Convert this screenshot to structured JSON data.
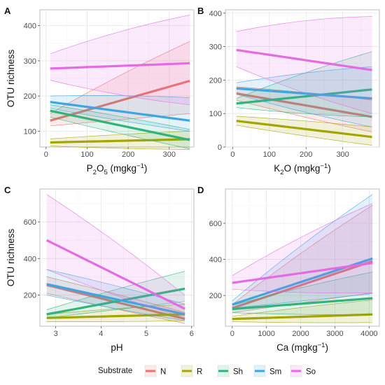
{
  "legend": {
    "title": "Substrate",
    "items": [
      {
        "key": "N",
        "label": "N",
        "color": "#E8746B"
      },
      {
        "key": "R",
        "label": "R",
        "color": "#A3A500"
      },
      {
        "key": "Sh",
        "label": "Sh",
        "color": "#2FB47C"
      },
      {
        "key": "Sm",
        "label": "Sm",
        "color": "#3CA6E0"
      },
      {
        "key": "So",
        "label": "So",
        "color": "#E36BE3"
      }
    ]
  },
  "chart_data": [
    {
      "panel": "A",
      "type": "line",
      "xlabel_main": "P",
      "xlabel_sub": "2",
      "xlabel_mid": "O",
      "xlabel_sub2": "5",
      "xlabel_unit": " (mgkg",
      "xlabel_sup": "−1",
      "xlabel_end": ")",
      "ylabel": "OTU richness",
      "xlim": [
        -15,
        360
      ],
      "ylim": [
        55,
        445
      ],
      "xticks": [
        0,
        100,
        200,
        300
      ],
      "yticks": [
        100,
        200,
        300,
        400
      ],
      "series": [
        {
          "name": "N",
          "x": [
            10,
            350
          ],
          "fit": [
            130,
            243
          ],
          "lower": [
            115,
            150
          ],
          "upper": [
            150,
            355
          ]
        },
        {
          "name": "R",
          "x": [
            10,
            350
          ],
          "fit": [
            68,
            77
          ],
          "lower": [
            58,
            48
          ],
          "upper": [
            78,
            100
          ]
        },
        {
          "name": "Sh",
          "x": [
            10,
            350
          ],
          "fit": [
            158,
            75
          ],
          "lower": [
            140,
            50
          ],
          "upper": [
            175,
            105
          ]
        },
        {
          "name": "Sm",
          "x": [
            10,
            350
          ],
          "fit": [
            183,
            130
          ],
          "lower": [
            165,
            100
          ],
          "upper": [
            200,
            195
          ]
        },
        {
          "name": "So",
          "x": [
            10,
            350
          ],
          "fit": [
            278,
            293
          ],
          "lower": [
            245,
            175
          ],
          "upper": [
            320,
            430
          ]
        }
      ]
    },
    {
      "panel": "B",
      "type": "line",
      "xlabel_main": "K",
      "xlabel_sub": "2",
      "xlabel_mid": "O",
      "xlabel_sub2": "",
      "xlabel_unit": " (mgkg",
      "xlabel_sup": "−1",
      "xlabel_end": ")",
      "ylabel": "",
      "xlim": [
        -20,
        400
      ],
      "ylim": [
        0,
        410
      ],
      "xticks": [
        0,
        100,
        200,
        300
      ],
      "yticks": [
        0,
        100,
        200,
        300,
        400
      ],
      "series": [
        {
          "name": "N",
          "x": [
            10,
            380
          ],
          "fit": [
            160,
            90
          ],
          "lower": [
            140,
            45
          ],
          "upper": [
            180,
            140
          ]
        },
        {
          "name": "R",
          "x": [
            10,
            380
          ],
          "fit": [
            78,
            30
          ],
          "lower": [
            65,
            5
          ],
          "upper": [
            92,
            60
          ]
        },
        {
          "name": "Sh",
          "x": [
            10,
            380
          ],
          "fit": [
            130,
            172
          ],
          "lower": [
            118,
            90
          ],
          "upper": [
            145,
            285
          ]
        },
        {
          "name": "Sm",
          "x": [
            10,
            380
          ],
          "fit": [
            175,
            145
          ],
          "lower": [
            158,
            60
          ],
          "upper": [
            192,
            240
          ]
        },
        {
          "name": "So",
          "x": [
            10,
            380
          ],
          "fit": [
            290,
            230
          ],
          "lower": [
            240,
            100
          ],
          "upper": [
            345,
            390
          ]
        }
      ]
    },
    {
      "panel": "C",
      "type": "line",
      "xlabel_main": "pH",
      "xlabel_sub": "",
      "xlabel_mid": "",
      "xlabel_sub2": "",
      "xlabel_unit": "",
      "xlabel_sup": "",
      "xlabel_end": "",
      "ylabel": "OTU richness",
      "xlim": [
        2.65,
        6.05
      ],
      "ylim": [
        30,
        780
      ],
      "xticks": [
        3,
        4,
        5,
        6
      ],
      "yticks": [
        200,
        400,
        600
      ],
      "series": [
        {
          "name": "N",
          "x": [
            2.8,
            5.85
          ],
          "fit": [
            255,
            70
          ],
          "lower": [
            210,
            45
          ],
          "upper": [
            300,
            105
          ]
        },
        {
          "name": "R",
          "x": [
            2.8,
            5.85
          ],
          "fit": [
            75,
            95
          ],
          "lower": [
            55,
            60
          ],
          "upper": [
            95,
            150
          ]
        },
        {
          "name": "Sh",
          "x": [
            2.8,
            5.85
          ],
          "fit": [
            95,
            235
          ],
          "lower": [
            75,
            165
          ],
          "upper": [
            120,
            330
          ]
        },
        {
          "name": "Sm",
          "x": [
            2.8,
            5.85
          ],
          "fit": [
            260,
            95
          ],
          "lower": [
            200,
            60
          ],
          "upper": [
            340,
            150
          ]
        },
        {
          "name": "So",
          "x": [
            2.8,
            5.85
          ],
          "fit": [
            500,
            125
          ],
          "lower": [
            340,
            75
          ],
          "upper": [
            750,
            200
          ]
        }
      ]
    },
    {
      "panel": "D",
      "type": "line",
      "xlabel_main": "Ca",
      "xlabel_sub": "",
      "xlabel_mid": "",
      "xlabel_sub2": "",
      "xlabel_unit": " (mgkg",
      "xlabel_sup": "−1",
      "xlabel_end": ")",
      "ylabel": "",
      "xlim": [
        -200,
        4300
      ],
      "ylim": [
        30,
        790
      ],
      "xticks": [
        0,
        1000,
        2000,
        3000,
        4000
      ],
      "yticks": [
        200,
        400,
        600
      ],
      "series": [
        {
          "name": "N",
          "x": [
            0,
            4100
          ],
          "fit": [
            130,
            390
          ],
          "lower": [
            105,
            215
          ],
          "upper": [
            150,
            700
          ]
        },
        {
          "name": "R",
          "x": [
            0,
            4100
          ],
          "fit": [
            70,
            95
          ],
          "lower": [
            55,
            50
          ],
          "upper": [
            85,
            175
          ]
        },
        {
          "name": "Sh",
          "x": [
            0,
            4100
          ],
          "fit": [
            125,
            185
          ],
          "lower": [
            105,
            95
          ],
          "upper": [
            145,
            330
          ]
        },
        {
          "name": "Sm",
          "x": [
            0,
            4100
          ],
          "fit": [
            150,
            405
          ],
          "lower": [
            130,
            210
          ],
          "upper": [
            170,
            760
          ]
        },
        {
          "name": "So",
          "x": [
            0,
            4100
          ],
          "fit": [
            270,
            380
          ],
          "lower": [
            235,
            215
          ],
          "upper": [
            310,
            710
          ]
        }
      ]
    }
  ]
}
